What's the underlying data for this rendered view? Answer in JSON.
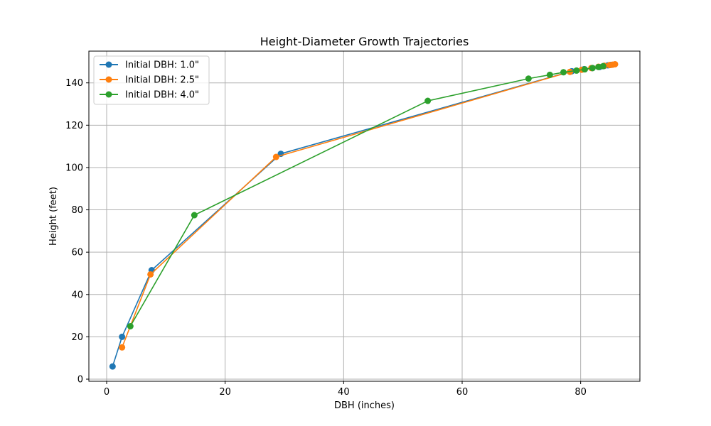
{
  "chart_data": {
    "type": "line",
    "title": "Height-Diameter Growth Trajectories",
    "xlabel": "DBH (inches)",
    "ylabel": "Height (feet)",
    "xlim": [
      -3,
      90
    ],
    "ylim": [
      -1,
      155
    ],
    "x_ticks": [
      0,
      20,
      40,
      60,
      80
    ],
    "y_ticks": [
      0,
      20,
      40,
      60,
      80,
      100,
      120,
      140
    ],
    "grid": true,
    "legend_position": "top-left",
    "series": [
      {
        "name": "Initial DBH: 1.0\"",
        "color": "#1f77b4",
        "marker": "circle",
        "x": [
          1.0,
          2.6,
          7.6,
          29.4,
          78.5,
          80.6,
          82.0,
          83.2,
          84.0,
          84.6,
          85.1
        ],
        "y": [
          6,
          20,
          51.5,
          106.5,
          145.5,
          146.5,
          147,
          147.5,
          148,
          148.3,
          148.5
        ]
      },
      {
        "name": "Initial DBH: 2.5\"",
        "color": "#ff7f0e",
        "marker": "circle",
        "x": [
          2.6,
          7.4,
          28.6,
          78.2,
          80.2,
          81.8,
          83.0,
          84.0,
          84.9,
          85.4,
          85.8
        ],
        "y": [
          15,
          49.5,
          105,
          145.2,
          146.2,
          147,
          147.6,
          148.1,
          148.4,
          148.6,
          148.8
        ]
      },
      {
        "name": "Initial DBH: 4.0\"",
        "color": "#2ca02c",
        "marker": "circle",
        "x": [
          4.0,
          14.8,
          54.2,
          71.2,
          74.8,
          77.1,
          79.3,
          80.7,
          82.0,
          83.0,
          83.8
        ],
        "y": [
          25,
          77.5,
          131.5,
          142,
          143.8,
          145,
          145.8,
          146.4,
          147,
          147.5,
          147.9
        ]
      }
    ]
  }
}
